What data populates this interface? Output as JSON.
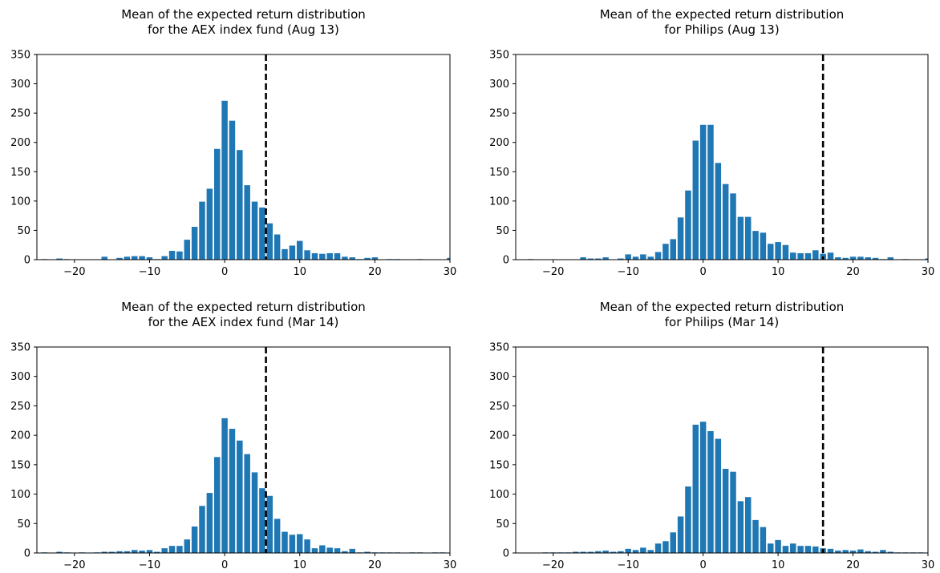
{
  "chart_data": [
    {
      "type": "bar",
      "title": "Mean of the expected return distribution\nfor the AEX index fund (Aug 13)",
      "xlabel": "",
      "ylabel": "",
      "xlim": [
        -25,
        30
      ],
      "ylim": [
        0,
        350
      ],
      "xticks": [
        -20,
        -10,
        0,
        10,
        20,
        30
      ],
      "yticks": [
        0,
        50,
        100,
        150,
        200,
        250,
        300,
        350
      ],
      "bar_color": "#1f77b4",
      "reference_line": {
        "x": 5.5,
        "style": "dashed",
        "color": "#000000"
      },
      "x": [
        -24,
        -22,
        -21,
        -16,
        -14,
        -13,
        -12,
        -11,
        -10,
        -9,
        -8,
        -7,
        -6,
        -5,
        -4,
        -3,
        -2,
        -1,
        0,
        1,
        2,
        3,
        4,
        5,
        6,
        7,
        8,
        9,
        10,
        11,
        12,
        13,
        14,
        15,
        16,
        17,
        18,
        19,
        20,
        22,
        23,
        26,
        30
      ],
      "values": [
        1,
        2,
        1,
        5,
        3,
        5,
        6,
        6,
        4,
        1,
        6,
        15,
        14,
        34,
        56,
        99,
        121,
        189,
        271,
        237,
        187,
        127,
        99,
        89,
        62,
        43,
        18,
        24,
        32,
        16,
        11,
        10,
        11,
        11,
        5,
        4,
        1,
        3,
        4,
        1,
        1,
        1,
        3
      ]
    },
    {
      "type": "bar",
      "title": "Mean of the expected return distribution\nfor Philips (Aug 13)",
      "xlabel": "",
      "ylabel": "",
      "xlim": [
        -25,
        30
      ],
      "ylim": [
        0,
        350
      ],
      "xticks": [
        -20,
        -10,
        0,
        10,
        20,
        30
      ],
      "yticks": [
        0,
        50,
        100,
        150,
        200,
        250,
        300,
        350
      ],
      "bar_color": "#1f77b4",
      "reference_line": {
        "x": 16,
        "style": "dashed",
        "color": "#000000"
      },
      "x": [
        -23,
        -16,
        -15,
        -14,
        -13,
        -11,
        -10,
        -9,
        -8,
        -7,
        -6,
        -5,
        -4,
        -3,
        -2,
        -1,
        0,
        1,
        2,
        3,
        4,
        5,
        6,
        7,
        8,
        9,
        10,
        11,
        12,
        13,
        14,
        15,
        16,
        17,
        18,
        19,
        20,
        21,
        22,
        23,
        24,
        25,
        27,
        30
      ],
      "values": [
        1,
        4,
        2,
        2,
        4,
        2,
        9,
        5,
        9,
        5,
        13,
        27,
        35,
        72,
        118,
        203,
        230,
        230,
        165,
        129,
        113,
        73,
        73,
        49,
        46,
        27,
        30,
        25,
        12,
        11,
        11,
        16,
        10,
        12,
        4,
        3,
        5,
        5,
        4,
        3,
        1,
        4,
        1,
        2
      ]
    },
    {
      "type": "bar",
      "title": "Mean of the expected return distribution\nfor the AEX index fund (Mar 14)",
      "xlabel": "",
      "ylabel": "",
      "xlim": [
        -25,
        30
      ],
      "ylim": [
        0,
        350
      ],
      "xticks": [
        -20,
        -10,
        0,
        10,
        20,
        30
      ],
      "yticks": [
        0,
        50,
        100,
        150,
        200,
        250,
        300,
        350
      ],
      "bar_color": "#1f77b4",
      "reference_line": {
        "x": 5.5,
        "style": "dashed",
        "color": "#000000"
      },
      "x": [
        -24,
        -22,
        -21,
        -19,
        -17,
        -16,
        -15,
        -14,
        -13,
        -12,
        -11,
        -10,
        -9,
        -8,
        -7,
        -6,
        -5,
        -4,
        -3,
        -2,
        -1,
        0,
        1,
        2,
        3,
        4,
        5,
        6,
        7,
        8,
        9,
        10,
        11,
        12,
        13,
        14,
        15,
        16,
        17,
        18,
        19,
        20,
        21,
        22,
        23,
        25,
        26,
        28,
        29
      ],
      "values": [
        1,
        2,
        1,
        1,
        1,
        2,
        2,
        3,
        3,
        5,
        4,
        5,
        2,
        8,
        12,
        12,
        23,
        45,
        80,
        102,
        163,
        229,
        211,
        191,
        168,
        137,
        110,
        97,
        58,
        36,
        31,
        32,
        23,
        8,
        13,
        9,
        8,
        3,
        7,
        1,
        2,
        1,
        1,
        1,
        1,
        1,
        1,
        1,
        1
      ]
    },
    {
      "type": "bar",
      "title": "Mean of the expected return distribution\nfor Philips (Mar 14)",
      "xlabel": "",
      "ylabel": "",
      "xlim": [
        -25,
        30
      ],
      "ylim": [
        0,
        350
      ],
      "xticks": [
        -20,
        -10,
        0,
        10,
        20,
        30
      ],
      "yticks": [
        0,
        50,
        100,
        150,
        200,
        250,
        300,
        350
      ],
      "bar_color": "#1f77b4",
      "reference_line": {
        "x": 16,
        "style": "dashed",
        "color": "#000000"
      },
      "x": [
        -21,
        -20,
        -19,
        -18,
        -17,
        -16,
        -15,
        -14,
        -13,
        -12,
        -11,
        -10,
        -9,
        -8,
        -7,
        -6,
        -5,
        -4,
        -3,
        -2,
        -1,
        0,
        1,
        2,
        3,
        4,
        5,
        6,
        7,
        8,
        9,
        10,
        11,
        12,
        13,
        14,
        15,
        16,
        17,
        18,
        19,
        20,
        21,
        22,
        23,
        24,
        25,
        26,
        27,
        28,
        29
      ],
      "values": [
        1,
        1,
        1,
        1,
        2,
        2,
        2,
        3,
        4,
        2,
        3,
        7,
        5,
        9,
        5,
        16,
        20,
        35,
        62,
        113,
        218,
        223,
        207,
        194,
        143,
        138,
        88,
        95,
        56,
        44,
        16,
        22,
        12,
        16,
        12,
        12,
        11,
        8,
        7,
        4,
        5,
        4,
        6,
        3,
        2,
        5,
        2,
        1,
        1,
        1,
        1
      ]
    }
  ]
}
